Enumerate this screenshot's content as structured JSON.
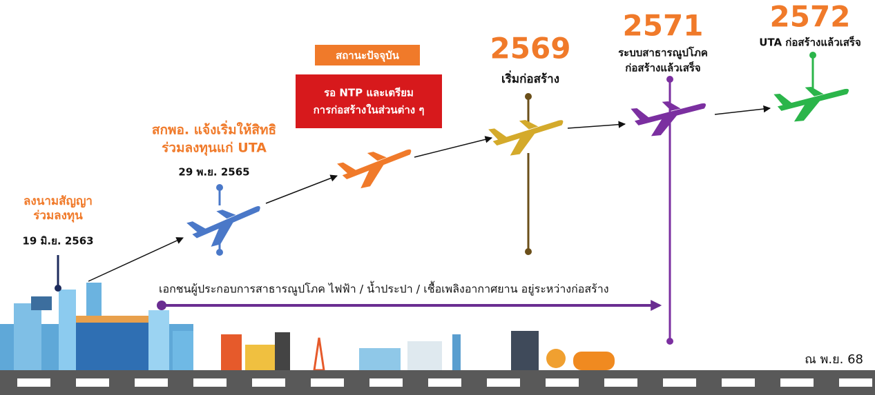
{
  "milestones": [
    {
      "title_lines": [
        "ลงนามสัญญา",
        "ร่วมลงทุน"
      ],
      "date": "19 มิ.ย. 2563"
    },
    {
      "title_lines": [
        "สกพอ. แจ้งเริ่มให้สิทธิ",
        "ร่วมลงทุนแก่ UTA"
      ],
      "date": "29 พ.ย. 2565"
    },
    {
      "badge": "สถานะปัจจุบัน",
      "status_lines": [
        "รอ NTP และเตรียม",
        "การก่อสร้างในส่วนต่าง ๆ"
      ]
    },
    {
      "year": "2569",
      "title_lines": [
        "เริ่มก่อสร้าง"
      ]
    },
    {
      "year": "2571",
      "title_lines": [
        "ระบบสาธารณูปโภค",
        "ก่อสร้างแล้วเสร็จ"
      ]
    },
    {
      "year": "2572",
      "title_lines": [
        "UTA ก่อสร้างแล้วเสร็จ"
      ]
    }
  ],
  "utilities_note": "เอกชนผู้ประกอบการสาธารณูปโภค ไฟฟ้า / น้ำประปา / เชื้อเพลิงอากาศยาน อยู่ระหว่างก่อสร้าง",
  "as_of": "ณ พ.ย. 68"
}
